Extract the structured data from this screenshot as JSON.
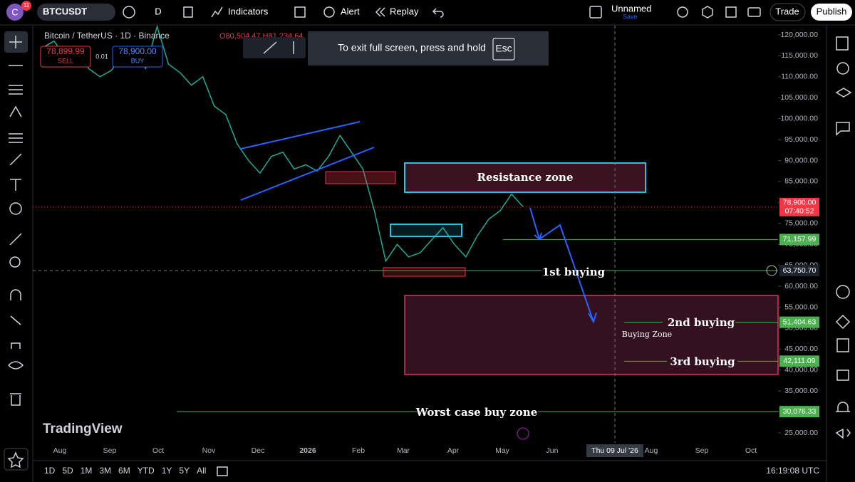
{
  "topbar": {
    "avatar": "C",
    "badge": "11",
    "symbol": "BTCUSDT",
    "interval": "D",
    "indicators": "Indicators",
    "alert": "Alert",
    "replay": "Replay",
    "layout_name": "Unnamed",
    "save": "Save",
    "trade": "Trade",
    "publish": "Publish"
  },
  "chart": {
    "symbol_title": "Bitcoin / TetherUS · 1D · Binance",
    "ohlc": "O80,504.47 H81,234.64",
    "sell_price": "78,899.99",
    "sell": "SELL",
    "qty": "0.01",
    "buy_price": "78,900.00",
    "buy": "BUY",
    "fullscreen_hint": "To exit full screen, press and hold",
    "esc_key": "Esc",
    "logo": "TradingView",
    "price_line": {
      "color": "#22ab94",
      "values": [
        117000,
        118500,
        114500,
        117000,
        112000,
        110000,
        111500,
        115500,
        116000,
        112000,
        122000,
        113000,
        111000,
        108000,
        110000,
        103000,
        101000,
        94000,
        90000,
        87000,
        91000,
        92000,
        88000,
        89000,
        87500,
        91000,
        96000,
        92000,
        88000,
        78000,
        66000,
        70000,
        67000,
        68000,
        71000,
        74000,
        70000,
        67000,
        72000,
        76000,
        78000,
        82000,
        79000
      ]
    },
    "price_ticks": [
      {
        "value": 120000,
        "label": "120,000.00"
      },
      {
        "value": 115000,
        "label": "115,000.00"
      },
      {
        "value": 110000,
        "label": "110,000.00"
      },
      {
        "value": 105000,
        "label": "105,000.00"
      },
      {
        "value": 100000,
        "label": "100,000.00"
      },
      {
        "value": 95000,
        "label": "95,000.00"
      },
      {
        "value": 90000,
        "label": "90,000.00"
      },
      {
        "value": 85000,
        "label": "85,000.00"
      },
      {
        "value": 80000,
        "label": "80,000.00"
      },
      {
        "value": 75000,
        "label": "75,000.00"
      },
      {
        "value": 70000,
        "label": "70,000.00"
      },
      {
        "value": 65000,
        "label": "65,000.00"
      },
      {
        "value": 60000,
        "label": "60,000.00"
      },
      {
        "value": 55000,
        "label": "55,000.00"
      },
      {
        "value": 50000,
        "label": "50,000.00"
      },
      {
        "value": 45000,
        "label": "45,000.00"
      },
      {
        "value": 40000,
        "label": "40,000.00"
      },
      {
        "value": 35000,
        "label": "35,000.00"
      },
      {
        "value": 30000,
        "label": "30,000.00"
      },
      {
        "value": 25000,
        "label": "25,000.00"
      }
    ],
    "current_price": {
      "value": 78900,
      "label": "78,900.00",
      "countdown": "07:40:52"
    },
    "levels": [
      {
        "value": 71157.99,
        "label": "71,157.99"
      },
      {
        "value": 63750.7,
        "label": "63,750.70"
      },
      {
        "value": 51404.63,
        "label": "51,404.63"
      },
      {
        "value": 42111.09,
        "label": "42,111.09"
      },
      {
        "value": 30076.33,
        "label": "30,076.33"
      }
    ],
    "time_labels": [
      "Aug",
      "Sep",
      "Oct",
      "Nov",
      "Dec",
      "2026",
      "Feb",
      "Mar",
      "Apr",
      "May",
      "Jun",
      "Aug",
      "Sep",
      "Oct"
    ],
    "crosshair_date": "Thu 09 Jul '26",
    "annotations": {
      "resistance": "Resistance zone",
      "first": "1st buying",
      "second": "2nd buying",
      "zone": "Buying Zone",
      "third": "3rd buying",
      "worst": "Worst case buy zone"
    }
  },
  "bottombar": {
    "ranges": [
      "1D",
      "5D",
      "1M",
      "3M",
      "6M",
      "YTD",
      "1Y",
      "5Y",
      "All"
    ],
    "clock": "16:19:08 UTC"
  }
}
